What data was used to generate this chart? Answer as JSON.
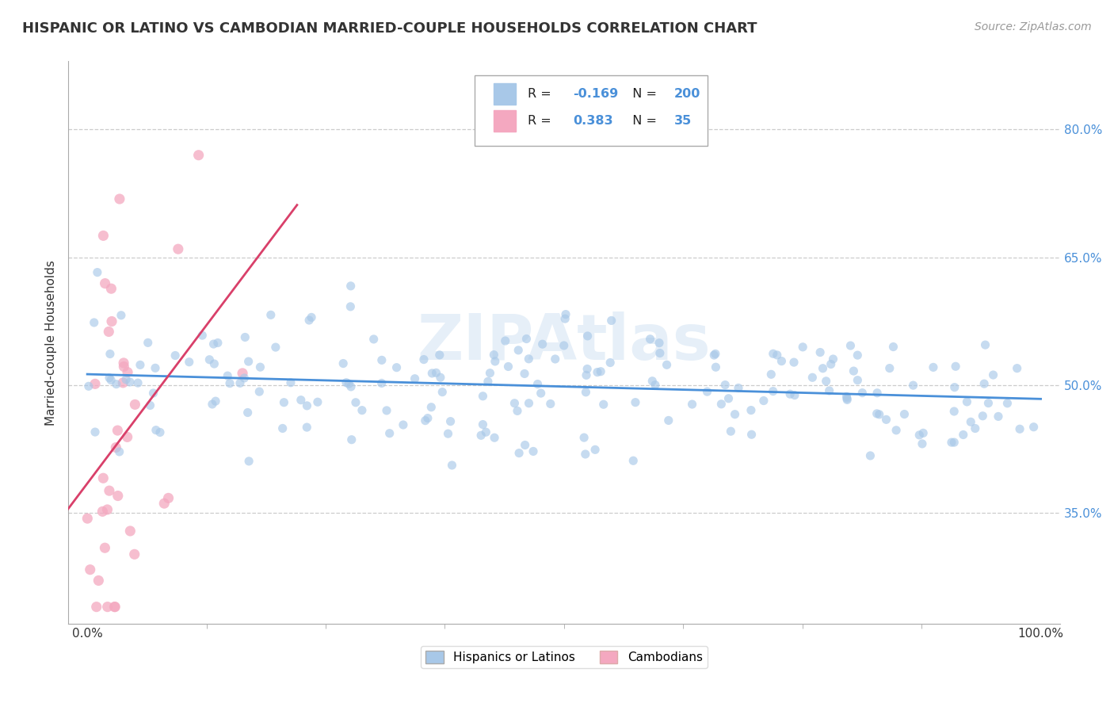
{
  "title": "HISPANIC OR LATINO VS CAMBODIAN MARRIED-COUPLE HOUSEHOLDS CORRELATION CHART",
  "source": "Source: ZipAtlas.com",
  "ylabel": "Married-couple Households",
  "xlabel": "",
  "x_tick_labels": [
    "0.0%",
    "100.0%"
  ],
  "y_tick_labels": [
    "35.0%",
    "50.0%",
    "65.0%",
    "80.0%"
  ],
  "y_tick_values": [
    0.35,
    0.5,
    0.65,
    0.8
  ],
  "x_lim": [
    -0.02,
    1.02
  ],
  "y_lim": [
    0.22,
    0.88
  ],
  "blue_R": -0.169,
  "blue_N": 200,
  "pink_R": 0.383,
  "pink_N": 35,
  "blue_color": "#a8c8e8",
  "pink_color": "#f4a8c0",
  "blue_line_color": "#4a90d9",
  "pink_line_color": "#d9406a",
  "watermark": "ZIPAtlas",
  "legend_label_blue": "Hispanics or Latinos",
  "legend_label_pink": "Cambodians",
  "background_color": "#ffffff",
  "grid_color": "#cccccc",
  "title_color": "#333333",
  "title_fontsize": 13,
  "label_fontsize": 11,
  "tick_fontsize": 11,
  "source_fontsize": 10,
  "tick_color": "#4a90d9"
}
